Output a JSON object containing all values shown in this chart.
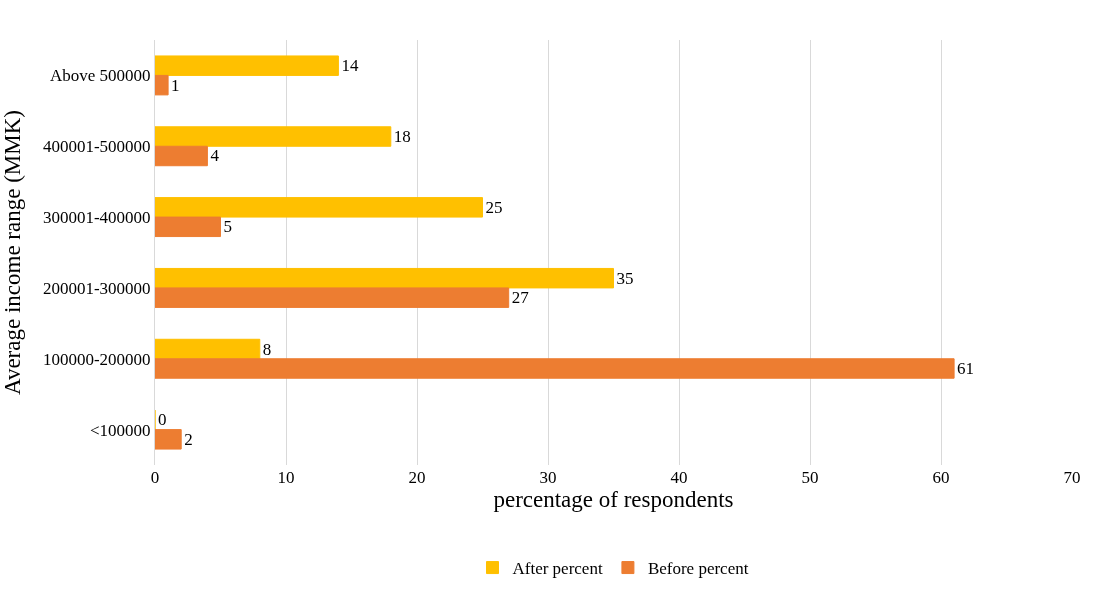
{
  "chart_data": {
    "type": "bar",
    "orientation": "horizontal",
    "categories": [
      "Above 500000",
      "400001-500000",
      "300001-400000",
      "200001-300000",
      "100000-200000",
      "<100000"
    ],
    "series": [
      {
        "name": "After percent",
        "color": "#ffc000",
        "values": [
          14,
          18,
          25,
          35,
          8,
          0
        ]
      },
      {
        "name": "Before percent",
        "color": "#ed7d31",
        "values": [
          1,
          4,
          5,
          27,
          61,
          2
        ]
      }
    ],
    "xlabel": "percentage of respondents",
    "ylabel": "Average income range (MMK)",
    "xlim": [
      0,
      70
    ],
    "xticks": [
      0,
      10,
      20,
      30,
      40,
      50,
      60,
      70
    ],
    "grid": "x",
    "legend": "bottom",
    "data_labels": true
  }
}
